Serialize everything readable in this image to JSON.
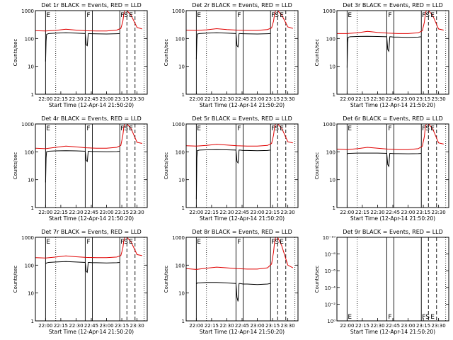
{
  "figure": {
    "colors": {
      "events": "#000000",
      "lld": "#e00000",
      "axis": "#000000"
    },
    "time_ticks": [
      "22:00",
      "22:15",
      "22:30",
      "22:45",
      "23:00",
      "23:15",
      "23:30"
    ],
    "time_range_min": [
      -10,
      100
    ],
    "event_lines": {
      "dotted": [
        10,
        97
      ],
      "solid": [
        0,
        39,
        46,
        73
      ],
      "dashed": [
        80,
        88
      ]
    },
    "event_labels": [
      "E",
      "F",
      "FS",
      "E"
    ]
  },
  "chart_data": [
    {
      "type": "line",
      "title": "Det 1r BLACK = Events, RED = LLD",
      "xlabel": "Start Time (12-Apr-14 21:50:20)",
      "ylabel": "Counts/sec",
      "yscale": "log",
      "ylim": [
        1,
        1000
      ],
      "ytick_labels": [
        "1",
        "10",
        "100",
        "1000"
      ],
      "series": [
        {
          "key": "lld",
          "x": [
            -10,
            0,
            10,
            20,
            30,
            40,
            50,
            60,
            70,
            74,
            76,
            77,
            78,
            80,
            84,
            90,
            95
          ],
          "y": [
            190,
            185,
            195,
            215,
            200,
            190,
            185,
            185,
            200,
            230,
            400,
            800,
            1200,
            1200,
            700,
            250,
            220
          ]
        },
        {
          "key": "events",
          "x": [
            0,
            0.5,
            1,
            3,
            10,
            20,
            30,
            39,
            40,
            41,
            42,
            43,
            46,
            50,
            60,
            70,
            73
          ],
          "y": [
            15,
            80,
            140,
            150,
            155,
            160,
            155,
            150,
            60,
            55,
            150,
            150,
            148,
            147,
            145,
            148,
            150
          ]
        }
      ]
    },
    {
      "type": "line",
      "title": "Det 2r BLACK = Events, RED = LLD",
      "xlabel": "Start Time (12-Apr-14 21:50:20)",
      "ylabel": "Counts/sec",
      "yscale": "log",
      "ylim": [
        1,
        1000
      ],
      "ytick_labels": [
        "1",
        "10",
        "100",
        "1000"
      ],
      "series": [
        {
          "key": "lld",
          "x": [
            -10,
            0,
            10,
            20,
            30,
            40,
            50,
            60,
            70,
            74,
            76,
            77,
            78,
            80,
            84,
            90,
            95
          ],
          "y": [
            200,
            195,
            205,
            225,
            210,
            200,
            195,
            195,
            210,
            240,
            420,
            800,
            1200,
            1200,
            700,
            260,
            230
          ]
        },
        {
          "key": "events",
          "x": [
            0,
            0.5,
            1,
            3,
            10,
            20,
            30,
            39,
            40,
            41,
            42,
            43,
            46,
            50,
            60,
            70,
            73
          ],
          "y": [
            18,
            90,
            145,
            150,
            155,
            160,
            155,
            150,
            55,
            50,
            150,
            150,
            148,
            147,
            145,
            148,
            150
          ]
        }
      ]
    },
    {
      "type": "line",
      "title": "Det 3r BLACK = Events, RED = LLD",
      "xlabel": "Start Time (12-Apr-14 21:50:20)",
      "ylabel": "Counts/sec",
      "yscale": "log",
      "ylim": [
        1,
        1000
      ],
      "ytick_labels": [
        "1",
        "10",
        "100",
        "1000"
      ],
      "series": [
        {
          "key": "lld",
          "x": [
            -10,
            0,
            10,
            20,
            30,
            40,
            50,
            60,
            70,
            74,
            76,
            77,
            78,
            80,
            84,
            90,
            95
          ],
          "y": [
            150,
            150,
            160,
            180,
            165,
            155,
            150,
            150,
            160,
            190,
            380,
            800,
            1200,
            1200,
            700,
            220,
            200
          ]
        },
        {
          "key": "events",
          "x": [
            0,
            0.5,
            1,
            3,
            10,
            20,
            30,
            39,
            40,
            41,
            42,
            43,
            46,
            50,
            60,
            70,
            73
          ],
          "y": [
            9,
            70,
            110,
            115,
            118,
            120,
            118,
            115,
            40,
            35,
            115,
            115,
            112,
            112,
            110,
            112,
            115
          ]
        }
      ]
    },
    {
      "type": "line",
      "title": "Det 4r BLACK = Events, RED = LLD",
      "xlabel": "Start Time (12-Apr-14 21:50:20)",
      "ylabel": "Counts/sec",
      "yscale": "log",
      "ylim": [
        1,
        1000
      ],
      "ytick_labels": [
        "1",
        "10",
        "100",
        "1000"
      ],
      "series": [
        {
          "key": "lld",
          "x": [
            -10,
            0,
            10,
            20,
            30,
            40,
            50,
            60,
            70,
            74,
            76,
            77,
            78,
            80,
            84,
            90,
            95
          ],
          "y": [
            135,
            130,
            145,
            160,
            150,
            140,
            135,
            135,
            145,
            170,
            380,
            800,
            1200,
            1200,
            700,
            220,
            200
          ]
        },
        {
          "key": "events",
          "x": [
            0,
            0.5,
            1,
            3,
            10,
            20,
            30,
            39,
            40,
            41,
            42,
            43,
            46,
            50,
            60,
            70,
            73
          ],
          "y": [
            8,
            60,
            100,
            105,
            108,
            110,
            108,
            105,
            50,
            45,
            105,
            105,
            102,
            102,
            100,
            102,
            105
          ]
        }
      ]
    },
    {
      "type": "line",
      "title": "Det 5r BLACK = Events, RED = LLD",
      "xlabel": "Start Time (12-Apr-14 21:50:20)",
      "ylabel": "Counts/sec",
      "yscale": "log",
      "ylim": [
        1,
        1000
      ],
      "ytick_labels": [
        "1",
        "10",
        "100",
        "1000"
      ],
      "series": [
        {
          "key": "lld",
          "x": [
            -10,
            0,
            10,
            20,
            30,
            40,
            50,
            60,
            70,
            74,
            76,
            77,
            78,
            80,
            84,
            90,
            95
          ],
          "y": [
            165,
            160,
            170,
            185,
            175,
            165,
            160,
            160,
            170,
            200,
            400,
            800,
            1200,
            1200,
            700,
            230,
            210
          ]
        },
        {
          "key": "events",
          "x": [
            0,
            0.5,
            1,
            3,
            10,
            20,
            30,
            39,
            40,
            41,
            42,
            43,
            46,
            50,
            60,
            70,
            73
          ],
          "y": [
            2,
            60,
            110,
            115,
            118,
            120,
            118,
            115,
            45,
            40,
            115,
            115,
            112,
            112,
            110,
            112,
            115
          ]
        }
      ]
    },
    {
      "type": "line",
      "title": "Det 6r BLACK = Events, RED = LLD",
      "xlabel": "Start Time (12-Apr-14 21:50:20)",
      "ylabel": "Counts/sec",
      "yscale": "log",
      "ylim": [
        1,
        1000
      ],
      "ytick_labels": [
        "1",
        "10",
        "100",
        "1000"
      ],
      "series": [
        {
          "key": "lld",
          "x": [
            -10,
            0,
            10,
            20,
            30,
            40,
            50,
            60,
            70,
            74,
            76,
            77,
            78,
            80,
            84,
            90,
            95
          ],
          "y": [
            125,
            120,
            130,
            145,
            135,
            125,
            120,
            120,
            130,
            160,
            350,
            800,
            1200,
            1200,
            700,
            210,
            190
          ]
        },
        {
          "key": "events",
          "x": [
            0,
            0.5,
            1,
            3,
            10,
            20,
            30,
            39,
            40,
            41,
            42,
            43,
            46,
            50,
            60,
            70,
            73
          ],
          "y": [
            85,
            85,
            88,
            88,
            90,
            90,
            90,
            88,
            35,
            30,
            88,
            88,
            86,
            86,
            85,
            86,
            88
          ]
        }
      ]
    },
    {
      "type": "line",
      "title": "Det 7r BLACK = Events, RED = LLD",
      "xlabel": "Start Time (12-Apr-14 21:50:20)",
      "ylabel": "Counts/sec",
      "yscale": "log",
      "ylim": [
        1,
        1000
      ],
      "ytick_labels": [
        "1",
        "10",
        "100",
        "1000"
      ],
      "series": [
        {
          "key": "lld",
          "x": [
            -10,
            0,
            10,
            20,
            30,
            40,
            50,
            60,
            70,
            74,
            76,
            77,
            78,
            80,
            84,
            90,
            95
          ],
          "y": [
            185,
            180,
            195,
            215,
            200,
            190,
            185,
            185,
            195,
            220,
            400,
            800,
            1200,
            1200,
            700,
            240,
            220
          ]
        },
        {
          "key": "events",
          "x": [
            0,
            0.5,
            1,
            3,
            10,
            20,
            30,
            39,
            40,
            41,
            42,
            43,
            46,
            50,
            60,
            70,
            73
          ],
          "y": [
            115,
            115,
            120,
            125,
            130,
            135,
            130,
            125,
            60,
            55,
            125,
            125,
            122,
            122,
            120,
            122,
            125
          ]
        }
      ]
    },
    {
      "type": "line",
      "title": "Det 8r BLACK = Events, RED = LLD",
      "xlabel": "Start Time (12-Apr-14 21:50:20)",
      "ylabel": "Counts/sec",
      "yscale": "log",
      "ylim": [
        1,
        1000
      ],
      "ytick_labels": [
        "1",
        "10",
        "100",
        "1000"
      ],
      "series": [
        {
          "key": "lld",
          "x": [
            -10,
            0,
            10,
            20,
            30,
            40,
            50,
            60,
            70,
            74,
            76,
            77,
            78,
            80,
            84,
            90,
            95
          ],
          "y": [
            75,
            70,
            78,
            85,
            80,
            75,
            72,
            72,
            80,
            110,
            300,
            700,
            1200,
            1200,
            500,
            100,
            80
          ]
        },
        {
          "key": "events",
          "x": [
            0,
            0.5,
            1,
            3,
            10,
            20,
            30,
            39,
            40,
            41,
            42,
            43,
            46,
            50,
            60,
            70,
            73
          ],
          "y": [
            22,
            22,
            23,
            23,
            24,
            24,
            23,
            22,
            7,
            5,
            22,
            22,
            21,
            21,
            20,
            21,
            22
          ]
        }
      ]
    },
    {
      "type": "line",
      "title": "Det 9r BLACK = Events, RED = LLD",
      "xlabel": "Start Time (12-Apr-14 21:50:20)",
      "ylabel": "Counts/sec",
      "yscale": "log",
      "ylim": [
        1,
        1e-10
      ],
      "ytick_labels": [
        "10⁰",
        "10⁻²",
        "10⁻⁴",
        "10⁻⁶",
        "10⁻⁸",
        "10⁻¹⁰"
      ],
      "series": []
    }
  ]
}
